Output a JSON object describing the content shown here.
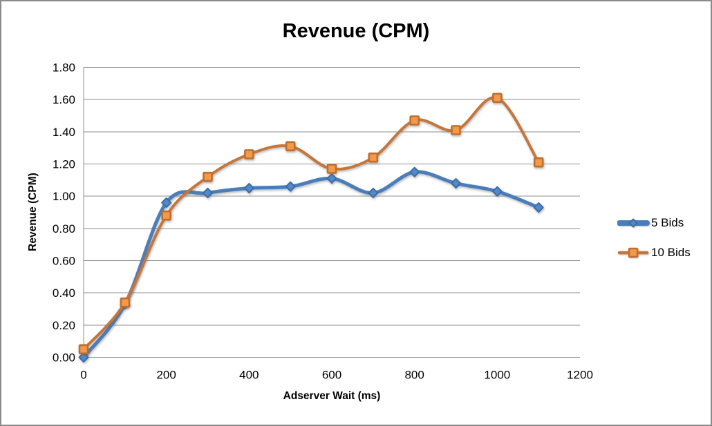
{
  "frame": {
    "border_color": "#8a8a8a",
    "background": "#ffffff"
  },
  "chart_data": {
    "type": "line",
    "title": "Revenue (CPM)",
    "xlabel": "Adserver Wait (ms)",
    "ylabel": "Revenue (CPM)",
    "x": [
      0,
      100,
      200,
      300,
      400,
      500,
      600,
      700,
      800,
      900,
      1000,
      1100
    ],
    "series": [
      {
        "name": "5 Bids",
        "values": [
          0.0,
          0.33,
          0.96,
          1.02,
          1.05,
          1.06,
          1.11,
          1.02,
          1.15,
          1.08,
          1.03,
          0.93
        ],
        "line_color": "#4a7ebb",
        "line_width": 5,
        "marker": "diamond",
        "marker_fill": "#5489c7",
        "marker_border": "#3a6ba8",
        "marker_size": 13
      },
      {
        "name": "10 Bids",
        "values": [
          0.05,
          0.34,
          0.88,
          1.12,
          1.26,
          1.31,
          1.17,
          1.24,
          1.47,
          1.41,
          1.61,
          1.21
        ],
        "line_color": "#c4763b",
        "line_width": 4,
        "marker": "square",
        "marker_fill": "#f29a49",
        "marker_border": "#bf6e2e",
        "marker_size": 12
      }
    ],
    "xlim": [
      0,
      1200
    ],
    "ylim": [
      0,
      1.8
    ],
    "xticks": [
      "0",
      "200",
      "400",
      "600",
      "800",
      "1000",
      "1200"
    ],
    "yticks": [
      "0.00",
      "0.20",
      "0.40",
      "0.60",
      "0.80",
      "1.00",
      "1.20",
      "1.40",
      "1.60",
      "1.80"
    ],
    "grid": "horizontal-major",
    "gridline_color": "#8c8c8c",
    "axis_color": "#8c8c8c",
    "legend_position": "right",
    "smoothed": true
  }
}
